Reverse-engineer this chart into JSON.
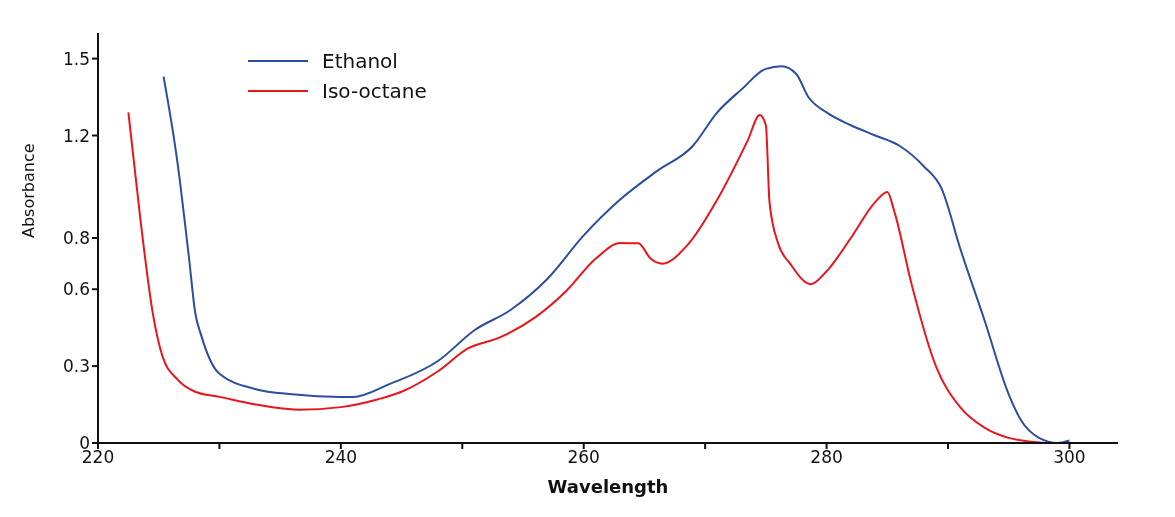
{
  "chart_data": {
    "type": "line",
    "xlabel": "Wavelength",
    "ylabel": "Absorbance",
    "xlim": [
      220,
      304
    ],
    "xticks": [
      220,
      {
        "value": 230,
        "label": null
      },
      240,
      {
        "value": 250,
        "label": null
      },
      260,
      {
        "value": 270,
        "label": null
      },
      280,
      {
        "value": 290,
        "label": null
      },
      300
    ],
    "ylim": [
      0,
      1.6
    ],
    "yticks": [
      0,
      0.3,
      0.6,
      0.8,
      1.2,
      1.5
    ],
    "grid": false,
    "legend": "top left",
    "marker": "none",
    "line_style": "solid",
    "series": [
      {
        "name": "Ethanol",
        "color": "#2b4ea2",
        "x": [
          225.4,
          226.5,
          227.5,
          228,
          228.5,
          230,
          233,
          236,
          240,
          241,
          244,
          248,
          251,
          254,
          257,
          260,
          263,
          266,
          269,
          271,
          273,
          275,
          276.3,
          277.5,
          278.5,
          280,
          282,
          284,
          286,
          288,
          289.5,
          291,
          293,
          295,
          296,
          297.5,
          299,
          300
        ],
        "values": [
          1.43,
          1.11,
          0.72,
          0.51,
          0.42,
          0.27,
          0.21,
          0.19,
          0.18,
          0.18,
          0.23,
          0.32,
          0.44,
          0.52,
          0.64,
          0.81,
          0.95,
          1.06,
          1.16,
          1.29,
          1.38,
          1.46,
          1.47,
          1.44,
          1.35,
          1.29,
          1.24,
          1.2,
          1.16,
          1.08,
          0.99,
          0.76,
          0.48,
          0.19,
          0.09,
          0.02,
          0,
          0.01
        ]
      },
      {
        "name": "Iso-octane",
        "color": "#e8161b",
        "x": [
          222.5,
          223.5,
          224.5,
          225.3,
          226.5,
          228,
          230,
          233,
          236.5,
          240,
          243,
          245,
          248,
          250.5,
          253,
          256,
          258.5,
          261,
          263,
          264.5,
          265.5,
          266.5,
          268.5,
          271,
          273.5,
          274.5,
          275,
          275.3,
          276,
          277,
          278.7,
          280,
          282,
          284,
          285,
          285.6,
          287,
          289,
          291,
          293,
          295,
          298
        ],
        "values": [
          1.29,
          0.87,
          0.51,
          0.34,
          0.25,
          0.2,
          0.18,
          0.15,
          0.13,
          0.14,
          0.17,
          0.2,
          0.28,
          0.37,
          0.41,
          0.49,
          0.59,
          0.72,
          0.78,
          0.78,
          0.72,
          0.7,
          0.77,
          0.95,
          1.18,
          1.28,
          1.24,
          0.94,
          0.78,
          0.7,
          0.62,
          0.67,
          0.8,
          0.94,
          0.98,
          0.9,
          0.62,
          0.3,
          0.14,
          0.06,
          0.02,
          0
        ]
      }
    ]
  }
}
